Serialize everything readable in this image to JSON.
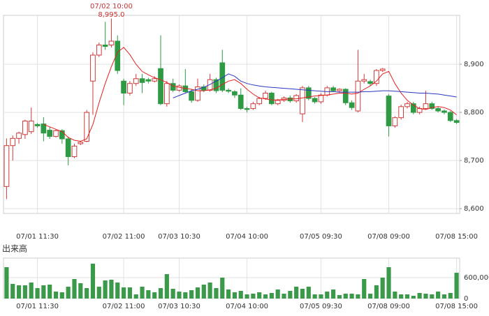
{
  "chart_data": {
    "type": "candlestick",
    "annotation": {
      "text": "07/02 10:00",
      "value": 8995,
      "value_label": "8,995.0"
    },
    "categories": [
      null,
      null,
      null,
      null,
      null,
      "07/01 11:30",
      null,
      null,
      null,
      null,
      null,
      null,
      null,
      null,
      null,
      null,
      null,
      null,
      null,
      "07/02 11:00",
      null,
      null,
      null,
      null,
      null,
      null,
      null,
      null,
      "07/03 10:30",
      null,
      null,
      null,
      null,
      null,
      null,
      null,
      null,
      null,
      null,
      "07/04 10:00",
      null,
      null,
      null,
      null,
      null,
      null,
      null,
      null,
      null,
      null,
      null,
      "07/05 09:30",
      null,
      null,
      null,
      null,
      null,
      null,
      null,
      null,
      null,
      null,
      "07/08 09:00",
      null,
      null,
      null,
      null,
      null,
      null,
      null,
      null,
      null,
      null,
      "07/08 15:00"
    ],
    "open": [
      8646,
      8731,
      8746,
      8754,
      8760,
      8775,
      8776,
      8763,
      8750,
      8762,
      8745,
      8708,
      8735,
      8740,
      8865,
      8919,
      8940,
      8940,
      8948,
      8865,
      8840,
      8860,
      8870,
      8868,
      8865,
      8891,
      8818,
      8860,
      8846,
      8855,
      8843,
      8825,
      8853,
      8846,
      8868,
      8903,
      8846,
      8843,
      8836,
      8808,
      8808,
      8818,
      8829,
      8840,
      8818,
      8825,
      8830,
      8824,
      8797,
      8851,
      8829,
      8822,
      8836,
      8851,
      8845,
      8848,
      8820,
      8803,
      8865,
      8864,
      8860,
      8887,
      8834,
      8772,
      8789,
      8812,
      8818,
      8800,
      8808,
      8818,
      8808,
      8803,
      8800,
      8783
    ],
    "high": [
      8746,
      8752,
      8760,
      8785,
      8810,
      8778,
      8790,
      8770,
      8765,
      8765,
      8750,
      8735,
      8740,
      8805,
      8925,
      8945,
      8988,
      8995,
      8960,
      8870,
      8865,
      8880,
      8880,
      8872,
      8875,
      8960,
      8865,
      8870,
      8858,
      8890,
      8848,
      8870,
      8858,
      8880,
      8872,
      8930,
      8850,
      8846,
      8850,
      8812,
      8822,
      8832,
      8845,
      8843,
      8828,
      8833,
      8835,
      8838,
      8855,
      8855,
      8832,
      8840,
      8855,
      8855,
      8850,
      8850,
      8825,
      8930,
      8880,
      8868,
      8890,
      8892,
      8838,
      8792,
      8816,
      8822,
      8822,
      8812,
      8845,
      8822,
      8812,
      8806,
      8803,
      8786
    ],
    "low": [
      8620,
      8700,
      8735,
      8745,
      8755,
      8768,
      8740,
      8745,
      8748,
      8735,
      8690,
      8705,
      8732,
      8738,
      8795,
      8915,
      8930,
      8935,
      8880,
      8815,
      8835,
      8855,
      8840,
      8860,
      8862,
      8815,
      8812,
      8842,
      8843,
      8840,
      8820,
      8822,
      8842,
      8843,
      8840,
      8842,
      8840,
      8830,
      8805,
      8800,
      8805,
      8815,
      8826,
      8815,
      8815,
      8822,
      8820,
      8820,
      8780,
      8825,
      8818,
      8818,
      8833,
      8842,
      8842,
      8815,
      8805,
      8800,
      8860,
      8855,
      8855,
      8884,
      8750,
      8768,
      8785,
      8808,
      8796,
      8796,
      8805,
      8805,
      8800,
      8796,
      8780,
      8776
    ],
    "close": [
      8731,
      8746,
      8757,
      8782,
      8782,
      8772,
      8757,
      8750,
      8762,
      8745,
      8708,
      8730,
      8738,
      8800,
      8919,
      8940,
      8937,
      8948,
      8887,
      8840,
      8860,
      8870,
      8862,
      8865,
      8870,
      8818,
      8860,
      8846,
      8855,
      8843,
      8825,
      8853,
      8846,
      8868,
      8845,
      8846,
      8844,
      8836,
      8808,
      8806,
      8818,
      8829,
      8840,
      8818,
      8825,
      8830,
      8824,
      8835,
      8851,
      8829,
      8822,
      8836,
      8851,
      8845,
      8848,
      8820,
      8810,
      8865,
      8868,
      8860,
      8887,
      8890,
      8772,
      8789,
      8812,
      8818,
      8800,
      8808,
      8818,
      8808,
      8803,
      8800,
      8783,
      8779
    ],
    "up_color": "#d03a3a",
    "down_color": "#2f9a44",
    "series": [
      {
        "color": "#e52020",
        "values": [
          null,
          null,
          null,
          null,
          null,
          null,
          8775,
          8770,
          8765,
          8760,
          8748,
          8742,
          8740,
          8745,
          8775,
          8820,
          8860,
          8895,
          8925,
          8935,
          8920,
          8900,
          8885,
          8878,
          8872,
          8868,
          8862,
          8855,
          8852,
          8850,
          8848,
          8845,
          8845,
          8847,
          8850,
          8858,
          8865,
          8868,
          8860,
          8848,
          8838,
          8830,
          8828,
          8826,
          8826,
          8827,
          8828,
          8828,
          8830,
          8832,
          8834,
          8835,
          8836,
          8838,
          8840,
          8840,
          8838,
          8840,
          8848,
          8855,
          8865,
          8880,
          8885,
          8860,
          8840,
          8825,
          8815,
          8808,
          8806,
          8810,
          8812,
          8810,
          8805,
          8795
        ]
      },
      {
        "color": "#2a38c0",
        "values": [
          null,
          null,
          null,
          null,
          null,
          null,
          null,
          null,
          null,
          null,
          null,
          null,
          null,
          null,
          null,
          null,
          null,
          null,
          null,
          null,
          null,
          null,
          null,
          null,
          null,
          null,
          null,
          8830,
          8835,
          8840,
          8845,
          8848,
          8852,
          8858,
          8865,
          8872,
          8880,
          8875,
          8865,
          8860,
          8857,
          8855,
          8853,
          8852,
          8851,
          8850,
          8849,
          8848,
          8847,
          8846,
          8845,
          8844,
          8843,
          8843,
          8842,
          8842,
          8842,
          8842,
          8843,
          8843,
          8844,
          8845,
          8845,
          8844,
          8843,
          8842,
          8841,
          8840,
          8840,
          8839,
          8838,
          8836,
          8834,
          8832
        ]
      }
    ],
    "ylim": [
      8590,
      8990
    ],
    "yticks": [
      {
        "value": 8600,
        "label": "8,600"
      },
      {
        "value": 8700,
        "label": "8,700"
      },
      {
        "value": 8800,
        "label": "8,800"
      },
      {
        "value": 8900,
        "label": "8,900"
      }
    ],
    "grid": true,
    "volume": {
      "label": "出来高",
      "color": "#3a9a4a",
      "values": [
        900000,
        420000,
        380000,
        380000,
        460000,
        300000,
        380000,
        400000,
        200000,
        180000,
        340000,
        560000,
        440000,
        300000,
        1000000,
        340000,
        520000,
        540000,
        460000,
        320000,
        320000,
        120000,
        340000,
        240000,
        180000,
        300000,
        700000,
        280000,
        200000,
        180000,
        240000,
        320000,
        400000,
        460000,
        300000,
        600000,
        260000,
        180000,
        220000,
        120000,
        140000,
        180000,
        120000,
        160000,
        260000,
        140000,
        220000,
        340000,
        280000,
        340000,
        120000,
        120000,
        200000,
        260000,
        100000,
        140000,
        140000,
        120000,
        560000,
        140000,
        380000,
        600000,
        900000,
        200000,
        120000,
        120000,
        80000,
        160000,
        140000,
        120000,
        200000,
        120000,
        160000,
        740000
      ],
      "ylim": [
        0,
        1100000
      ],
      "yticks": [
        0,
        {
          "value": 600000,
          "label": "600,000"
        }
      ]
    }
  }
}
